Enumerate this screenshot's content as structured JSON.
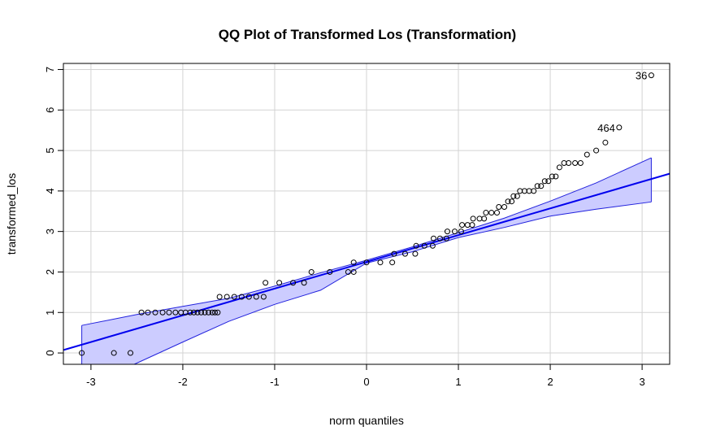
{
  "chart_data": {
    "type": "scatter",
    "title": "QQ Plot of Transformed Los (Transformation)",
    "xlabel": "norm quantiles",
    "ylabel": "transformed_los",
    "xlim": [
      -3.3,
      3.3
    ],
    "ylim": [
      -0.28,
      7.15
    ],
    "xticks": [
      -3,
      -2,
      -1,
      0,
      1,
      2,
      3
    ],
    "yticks": [
      0,
      1,
      2,
      3,
      4,
      5,
      6,
      7
    ],
    "grid": true,
    "colors": {
      "points": "#000000",
      "line": "#0000ee",
      "band_fill": "#ccccff",
      "band_edge": "#2222dd",
      "grid": "#d3d3d3"
    },
    "reference_line": {
      "intercept": 2.25,
      "slope": 0.66
    },
    "confidence_band": {
      "x": [
        -3.1,
        -2.5,
        -2.0,
        -1.5,
        -1.0,
        -0.5,
        0.0,
        0.5,
        1.0,
        1.5,
        2.0,
        2.5,
        3.1
      ],
      "upper": [
        0.68,
        0.95,
        1.15,
        1.35,
        1.65,
        1.98,
        2.29,
        2.62,
        2.97,
        3.33,
        3.75,
        4.2,
        4.82
      ],
      "lower": [
        -0.85,
        -0.25,
        0.27,
        0.78,
        1.2,
        1.55,
        2.22,
        2.5,
        2.85,
        3.1,
        3.38,
        3.55,
        3.73
      ]
    },
    "points": [
      {
        "x": -3.1,
        "y": 0.0
      },
      {
        "x": -2.75,
        "y": 0.0
      },
      {
        "x": -2.57,
        "y": 0.0
      },
      {
        "x": -2.45,
        "y": 1.0
      },
      {
        "x": -2.38,
        "y": 1.0
      },
      {
        "x": -2.3,
        "y": 1.0
      },
      {
        "x": -2.22,
        "y": 1.0
      },
      {
        "x": -2.15,
        "y": 1.0
      },
      {
        "x": -2.08,
        "y": 1.0
      },
      {
        "x": -2.02,
        "y": 1.0
      },
      {
        "x": -1.97,
        "y": 1.0
      },
      {
        "x": -1.92,
        "y": 1.0
      },
      {
        "x": -1.88,
        "y": 1.0
      },
      {
        "x": -1.84,
        "y": 1.0
      },
      {
        "x": -1.8,
        "y": 1.0
      },
      {
        "x": -1.76,
        "y": 1.0
      },
      {
        "x": -1.72,
        "y": 1.0
      },
      {
        "x": -1.68,
        "y": 1.0
      },
      {
        "x": -1.65,
        "y": 1.0
      },
      {
        "x": -1.62,
        "y": 1.0
      },
      {
        "x": -1.6,
        "y": 1.386
      },
      {
        "x": -1.52,
        "y": 1.386
      },
      {
        "x": -1.44,
        "y": 1.386
      },
      {
        "x": -1.36,
        "y": 1.386
      },
      {
        "x": -1.28,
        "y": 1.386
      },
      {
        "x": -1.2,
        "y": 1.386
      },
      {
        "x": -1.12,
        "y": 1.386
      },
      {
        "x": -1.1,
        "y": 1.733
      },
      {
        "x": -0.95,
        "y": 1.733
      },
      {
        "x": -0.8,
        "y": 1.733
      },
      {
        "x": -0.68,
        "y": 1.733
      },
      {
        "x": -0.6,
        "y": 2.0
      },
      {
        "x": -0.4,
        "y": 2.0
      },
      {
        "x": -0.2,
        "y": 2.0
      },
      {
        "x": -0.14,
        "y": 2.0
      },
      {
        "x": -0.14,
        "y": 2.236
      },
      {
        "x": 0.0,
        "y": 2.236
      },
      {
        "x": 0.15,
        "y": 2.236
      },
      {
        "x": 0.28,
        "y": 2.236
      },
      {
        "x": 0.3,
        "y": 2.449
      },
      {
        "x": 0.42,
        "y": 2.449
      },
      {
        "x": 0.53,
        "y": 2.449
      },
      {
        "x": 0.54,
        "y": 2.646
      },
      {
        "x": 0.63,
        "y": 2.646
      },
      {
        "x": 0.72,
        "y": 2.646
      },
      {
        "x": 0.73,
        "y": 2.828
      },
      {
        "x": 0.8,
        "y": 2.828
      },
      {
        "x": 0.87,
        "y": 2.828
      },
      {
        "x": 0.88,
        "y": 3.0
      },
      {
        "x": 0.96,
        "y": 3.0
      },
      {
        "x": 1.03,
        "y": 3.0
      },
      {
        "x": 1.04,
        "y": 3.162
      },
      {
        "x": 1.1,
        "y": 3.162
      },
      {
        "x": 1.15,
        "y": 3.162
      },
      {
        "x": 1.16,
        "y": 3.317
      },
      {
        "x": 1.23,
        "y": 3.317
      },
      {
        "x": 1.28,
        "y": 3.317
      },
      {
        "x": 1.3,
        "y": 3.464
      },
      {
        "x": 1.36,
        "y": 3.464
      },
      {
        "x": 1.42,
        "y": 3.464
      },
      {
        "x": 1.44,
        "y": 3.606
      },
      {
        "x": 1.5,
        "y": 3.606
      },
      {
        "x": 1.54,
        "y": 3.742
      },
      {
        "x": 1.58,
        "y": 3.742
      },
      {
        "x": 1.6,
        "y": 3.873
      },
      {
        "x": 1.64,
        "y": 3.873
      },
      {
        "x": 1.67,
        "y": 4.0
      },
      {
        "x": 1.72,
        "y": 4.0
      },
      {
        "x": 1.77,
        "y": 4.0
      },
      {
        "x": 1.82,
        "y": 4.0
      },
      {
        "x": 1.86,
        "y": 4.123
      },
      {
        "x": 1.9,
        "y": 4.123
      },
      {
        "x": 1.94,
        "y": 4.243
      },
      {
        "x": 1.98,
        "y": 4.243
      },
      {
        "x": 2.02,
        "y": 4.359
      },
      {
        "x": 2.06,
        "y": 4.359
      },
      {
        "x": 2.1,
        "y": 4.583
      },
      {
        "x": 2.15,
        "y": 4.69
      },
      {
        "x": 2.2,
        "y": 4.69
      },
      {
        "x": 2.27,
        "y": 4.69
      },
      {
        "x": 2.33,
        "y": 4.69
      },
      {
        "x": 2.4,
        "y": 4.899
      },
      {
        "x": 2.5,
        "y": 5.0
      },
      {
        "x": 2.6,
        "y": 5.196
      },
      {
        "x": 2.75,
        "y": 5.568
      },
      {
        "x": 3.1,
        "y": 6.856
      }
    ],
    "labeled_points": [
      {
        "label": "36",
        "x": 3.1,
        "y": 6.856
      },
      {
        "label": "464",
        "x": 2.75,
        "y": 5.568
      }
    ]
  }
}
